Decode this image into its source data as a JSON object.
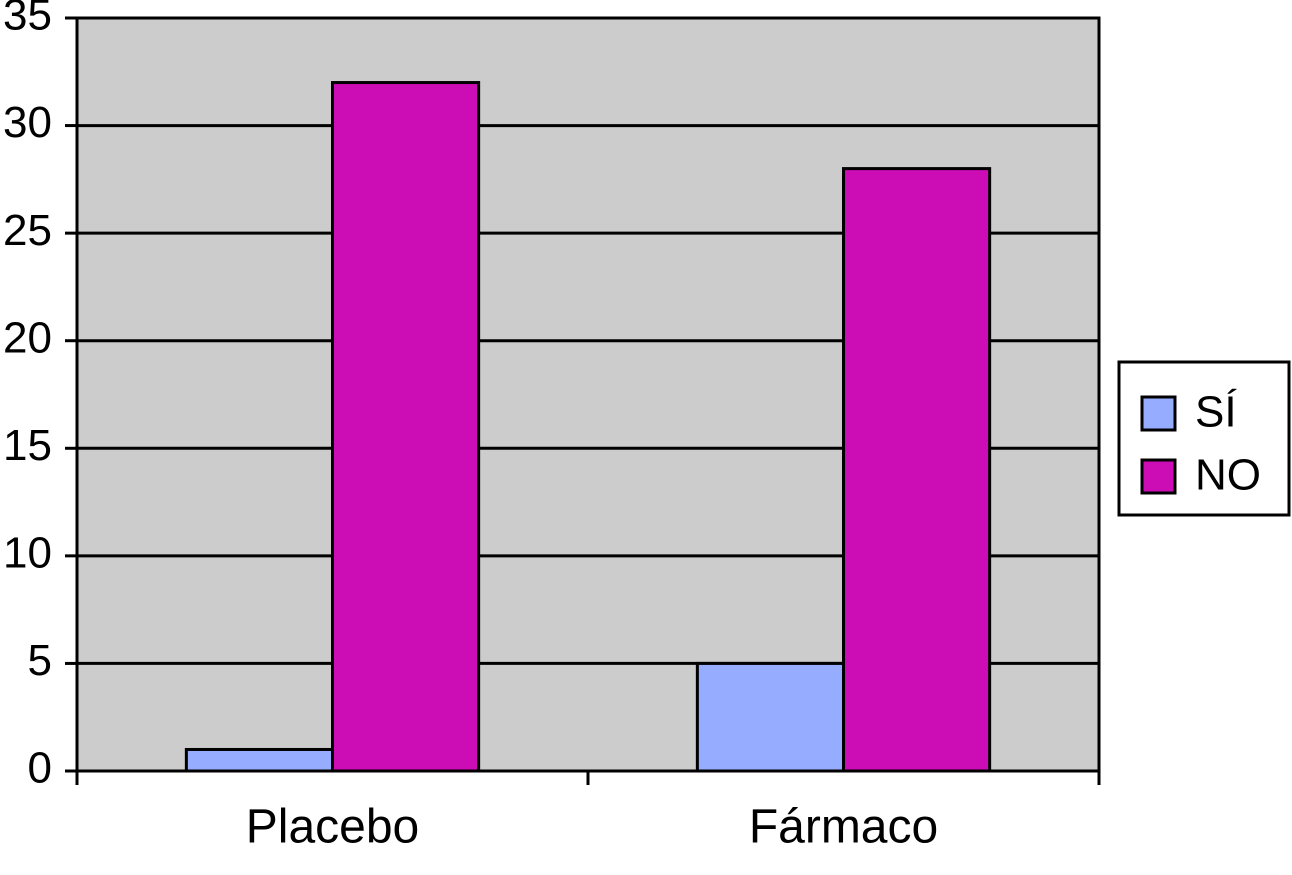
{
  "chart_data": {
    "type": "bar",
    "categories": [
      "Placebo",
      "Fármaco"
    ],
    "series": [
      {
        "name": "SÍ",
        "color": "#95acff",
        "values": [
          1,
          5
        ]
      },
      {
        "name": "NO",
        "color": "#cc0cb4",
        "values": [
          32,
          28
        ]
      }
    ],
    "ylim": [
      0,
      35
    ],
    "yticks": [
      0,
      5,
      10,
      15,
      20,
      25,
      30,
      35
    ],
    "grid": true,
    "legend": "right",
    "plot_background": "#cccccc"
  }
}
